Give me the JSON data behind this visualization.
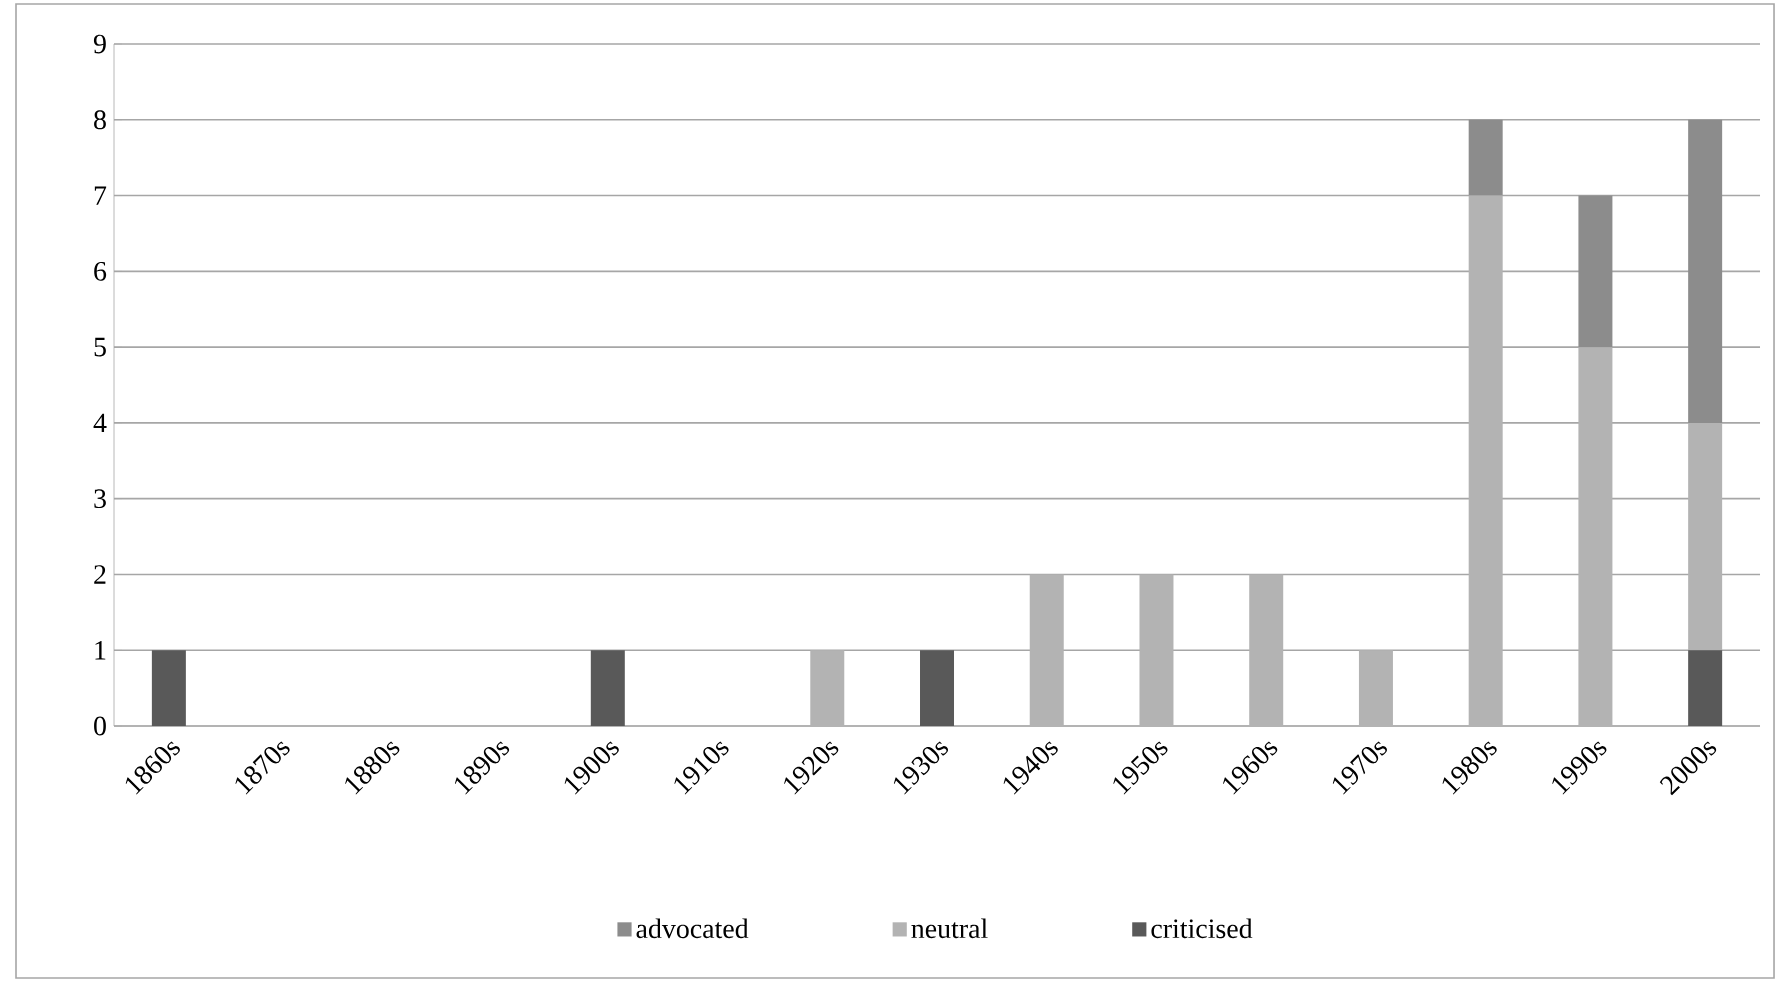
{
  "chart_data": {
    "type": "bar",
    "stacked": true,
    "categories": [
      "1860s",
      "1870s",
      "1880s",
      "1890s",
      "1900s",
      "1910s",
      "1920s",
      "1930s",
      "1940s",
      "1950s",
      "1960s",
      "1970s",
      "1980s",
      "1990s",
      "2000s"
    ],
    "series": [
      {
        "name": "criticised",
        "color": "#595959",
        "values": [
          1,
          0,
          0,
          0,
          1,
          0,
          0,
          1,
          0,
          0,
          0,
          0,
          0,
          0,
          1
        ]
      },
      {
        "name": "neutral",
        "color": "#b3b3b3",
        "values": [
          0,
          0,
          0,
          0,
          0,
          0,
          1,
          0,
          2,
          2,
          2,
          1,
          7,
          5,
          3
        ]
      },
      {
        "name": "advocated",
        "color": "#8c8c8c",
        "values": [
          0,
          0,
          0,
          0,
          0,
          0,
          0,
          0,
          0,
          0,
          0,
          0,
          1,
          2,
          4
        ]
      }
    ],
    "ylim": [
      0,
      9
    ],
    "yticks": [
      0,
      1,
      2,
      3,
      4,
      5,
      6,
      7,
      8,
      9
    ],
    "grid": "y",
    "legend": "bottom"
  }
}
